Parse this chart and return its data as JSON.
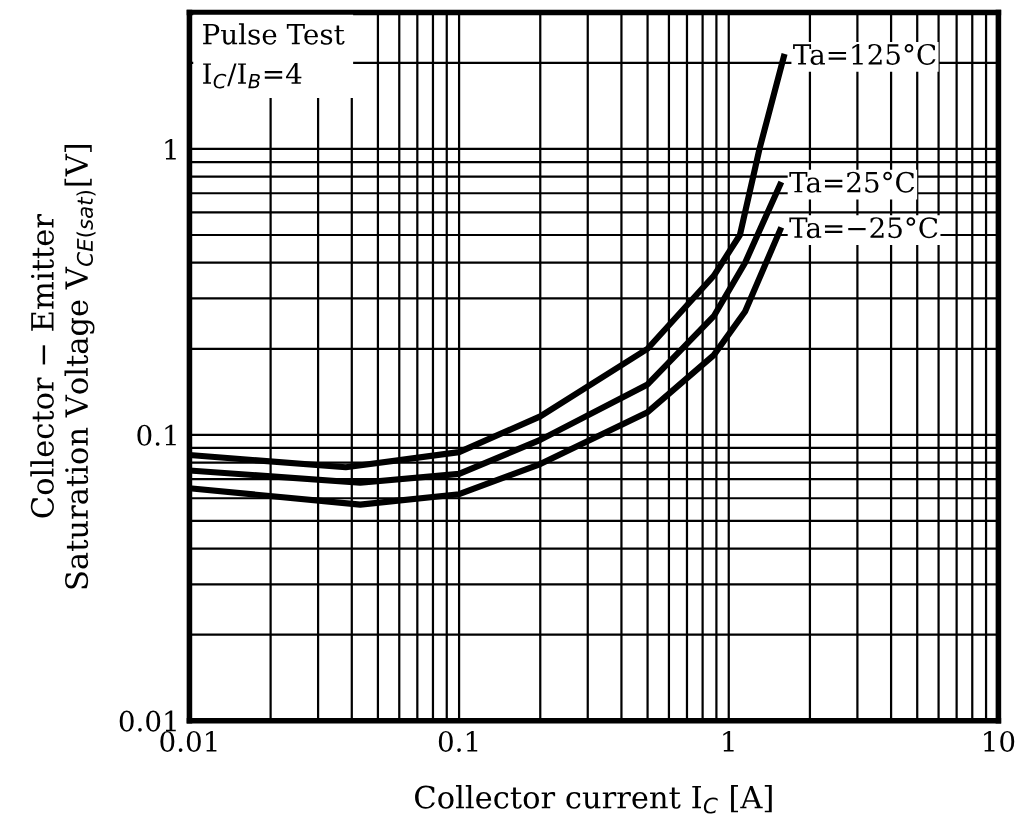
{
  "chart_data": {
    "type": "line",
    "xlabel": "Collector current I$_{C}$ [A]",
    "ylabel": "Collector − Emitter\nSaturation Voltage V$_{CE(sat)}$[V]",
    "annotations": [
      "Pulse Test",
      "I$_{C}$/I$_{B}$=4"
    ],
    "log": "xy",
    "grid": true,
    "legend": false,
    "marker": "none",
    "line_style": "solid",
    "xlim": [
      0.01,
      10
    ],
    "ylim": [
      0.01,
      3
    ],
    "xticks": [
      0.01,
      {
        "value": 0.02,
        "label": null
      },
      {
        "value": 0.03,
        "label": null
      },
      {
        "value": 0.04,
        "label": null
      },
      {
        "value": 0.05,
        "label": null
      },
      {
        "value": 0.06,
        "label": null
      },
      {
        "value": 0.07,
        "label": null
      },
      {
        "value": 0.08,
        "label": null
      },
      {
        "value": 0.09,
        "label": null
      },
      0.1,
      {
        "value": 0.2,
        "label": null
      },
      {
        "value": 0.3,
        "label": null
      },
      {
        "value": 0.4,
        "label": null
      },
      {
        "value": 0.5,
        "label": null
      },
      {
        "value": 0.6,
        "label": null
      },
      {
        "value": 0.7,
        "label": null
      },
      {
        "value": 0.8,
        "label": null
      },
      {
        "value": 0.9,
        "label": null
      },
      1,
      {
        "value": 2,
        "label": null
      },
      {
        "value": 3,
        "label": null
      },
      {
        "value": 4,
        "label": null
      },
      {
        "value": 5,
        "label": null
      },
      {
        "value": 6,
        "label": null
      },
      {
        "value": 7,
        "label": null
      },
      {
        "value": 8,
        "label": null
      },
      {
        "value": 9,
        "label": null
      },
      10
    ],
    "yticks": [
      0.01,
      {
        "value": 0.02,
        "label": null
      },
      {
        "value": 0.03,
        "label": null
      },
      {
        "value": 0.04,
        "label": null
      },
      {
        "value": 0.05,
        "label": null
      },
      {
        "value": 0.06,
        "label": null
      },
      {
        "value": 0.07,
        "label": null
      },
      {
        "value": 0.08,
        "label": null
      },
      {
        "value": 0.09,
        "label": null
      },
      0.1,
      {
        "value": 0.2,
        "label": null
      },
      {
        "value": 0.3,
        "label": null
      },
      {
        "value": 0.4,
        "label": null
      },
      {
        "value": 0.5,
        "label": null
      },
      {
        "value": 0.6,
        "label": null
      },
      {
        "value": 0.7,
        "label": null
      },
      {
        "value": 0.8,
        "label": null
      },
      {
        "value": 0.9,
        "label": null
      },
      1,
      {
        "value": 2,
        "label": null
      },
      {
        "value": 3,
        "label": null
      }
    ],
    "series": [
      {
        "name": "Ta=125°C",
        "color": "#000000",
        "x": [
          0.01,
          0.038,
          0.1,
          0.2,
          0.5,
          0.88,
          1.1,
          1.3,
          1.6
        ],
        "values": [
          0.085,
          0.077,
          0.087,
          0.116,
          0.2,
          0.36,
          0.5,
          1.0,
          2.1
        ]
      },
      {
        "name": "Ta=25°C",
        "color": "#000000",
        "x": [
          0.01,
          0.043,
          0.1,
          0.2,
          0.5,
          0.88,
          1.15,
          1.55
        ],
        "values": [
          0.075,
          0.068,
          0.073,
          0.096,
          0.15,
          0.26,
          0.4,
          0.75
        ]
      },
      {
        "name": "Ta=−25°C",
        "color": "#000000",
        "x": [
          0.01,
          0.043,
          0.1,
          0.2,
          0.5,
          0.88,
          1.15,
          1.55
        ],
        "values": [
          0.065,
          0.057,
          0.062,
          0.079,
          0.12,
          0.19,
          0.27,
          0.52
        ]
      }
    ]
  }
}
